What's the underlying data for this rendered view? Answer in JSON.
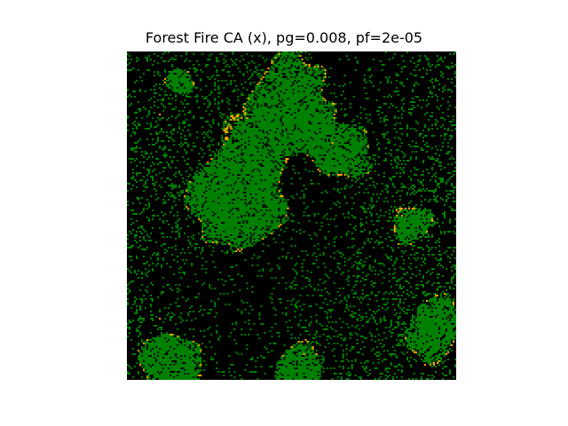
{
  "figure": {
    "title": "Forest Fire CA (x), pg=0.008, pf=2e-05"
  },
  "chart_data": {
    "type": "heatmap",
    "title": "Forest Fire CA (x), pg=0.008, pf=2e-05",
    "grid": false,
    "states": [
      {
        "state": "empty",
        "color": "#000000"
      },
      {
        "state": "tree",
        "color": "#008000"
      },
      {
        "state": "fire",
        "color": "#ffa500"
      }
    ],
    "parameters": {
      "pg": 0.008,
      "pf": 2e-05
    },
    "regions": [
      {
        "kind": "dense-cluster",
        "cx": 0.34,
        "cy": 0.42,
        "r": 0.18
      },
      {
        "kind": "dense-cluster",
        "cx": 0.53,
        "cy": 0.18,
        "r": 0.14
      },
      {
        "kind": "dense-cluster",
        "cx": 0.62,
        "cy": 0.28,
        "r": 0.1
      },
      {
        "kind": "dense-cluster",
        "cx": 0.86,
        "cy": 0.53,
        "r": 0.08
      },
      {
        "kind": "dense-cluster",
        "cx": 0.12,
        "cy": 0.95,
        "r": 0.09
      },
      {
        "kind": "dense-cluster",
        "cx": 0.52,
        "cy": 0.97,
        "r": 0.07
      },
      {
        "kind": "dense-cluster",
        "cx": 0.92,
        "cy": 0.84,
        "r": 0.08
      },
      {
        "kind": "dense-cluster",
        "cx": 0.17,
        "cy": 0.09,
        "r": 0.04
      }
    ]
  }
}
